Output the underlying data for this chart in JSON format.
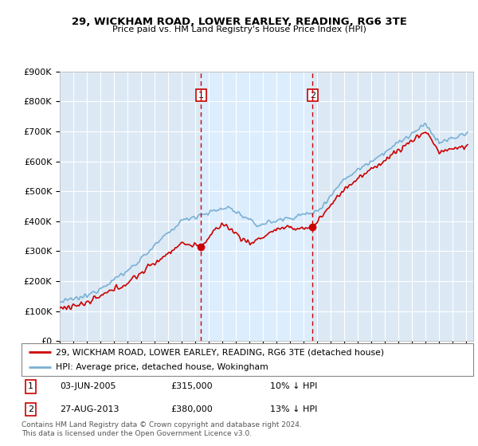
{
  "title": "29, WICKHAM ROAD, LOWER EARLEY, READING, RG6 3TE",
  "subtitle": "Price paid vs. HM Land Registry's House Price Index (HPI)",
  "ylim": [
    0,
    900000
  ],
  "yticks": [
    0,
    100000,
    200000,
    300000,
    400000,
    500000,
    600000,
    700000,
    800000,
    900000
  ],
  "ytick_labels": [
    "£0",
    "£100K",
    "£200K",
    "£300K",
    "£400K",
    "£500K",
    "£600K",
    "£700K",
    "£800K",
    "£900K"
  ],
  "xmin": 1995.0,
  "xmax": 2025.5,
  "sale1_date": 2005.42,
  "sale1_price": 315000,
  "sale1_label": "1",
  "sale2_date": 2013.65,
  "sale2_price": 380000,
  "sale2_label": "2",
  "legend_property": "29, WICKHAM ROAD, LOWER EARLEY, READING, RG6 3TE (detached house)",
  "legend_hpi": "HPI: Average price, detached house, Wokingham",
  "annotation1": [
    "1",
    "03-JUN-2005",
    "£315,000",
    "10% ↓ HPI"
  ],
  "annotation2": [
    "2",
    "27-AUG-2013",
    "£380,000",
    "13% ↓ HPI"
  ],
  "footer": "Contains HM Land Registry data © Crown copyright and database right 2024.\nThis data is licensed under the Open Government Licence v3.0.",
  "property_color": "#cc0000",
  "hpi_color": "#7ab0d4",
  "vline_color": "#cc0000",
  "shade_color": "#ddeeff",
  "plot_bg": "#dce9f5",
  "grid_color": "#ffffff",
  "sale_box_edge": "#cc0000"
}
